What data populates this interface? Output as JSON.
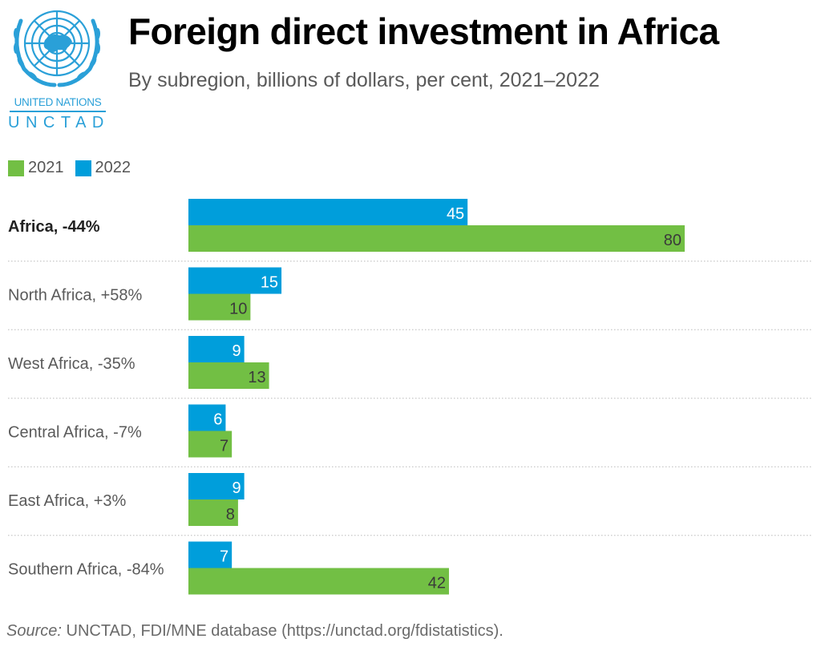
{
  "header": {
    "title": "Foreign direct investment in Africa",
    "subtitle": "By subregion, billions of dollars, per cent, 2021–2022"
  },
  "logo": {
    "line1": "UNITED NATIONS",
    "line2": "UNCTAD",
    "icon": "un-emblem-icon",
    "color": "#2aa0d8"
  },
  "colors": {
    "2021": "#72bf44",
    "2022": "#009edb",
    "label_dark": "#3a3a3a",
    "label_light": "#ffffff"
  },
  "footer": {
    "source_label": "Source:",
    "source_text": " UNCTAD, FDI/MNE database (https://unctad.org/fdistatistics)."
  },
  "chart_data": {
    "type": "bar",
    "orientation": "horizontal",
    "title": "Foreign direct investment in Africa",
    "subtitle": "By subregion, billions of dollars, per cent, 2021–2022",
    "xlabel": "",
    "ylabel": "",
    "xlim": [
      0,
      80
    ],
    "grid": false,
    "legend": {
      "placement": "top-left",
      "entries": [
        "2021",
        "2022"
      ]
    },
    "categories": [
      {
        "name": "Africa",
        "change": "-44%",
        "label": "Africa, -44%",
        "bold": true
      },
      {
        "name": "North Africa",
        "change": "+58%",
        "label": "North Africa, +58%",
        "bold": false
      },
      {
        "name": "West Africa",
        "change": "-35%",
        "label": "West Africa, -35%",
        "bold": false
      },
      {
        "name": "Central Africa",
        "change": "-7%",
        "label": "Central Africa, -7%",
        "bold": false
      },
      {
        "name": "East Africa",
        "change": "+3%",
        "label": "East Africa, +3%",
        "bold": false
      },
      {
        "name": "Southern Africa",
        "change": "-84%",
        "label": "Southern Africa, -84%",
        "bold": false
      }
    ],
    "series": [
      {
        "name": "2022",
        "color": "#009edb",
        "values": [
          45,
          15,
          9,
          6,
          9,
          7
        ]
      },
      {
        "name": "2021",
        "color": "#72bf44",
        "values": [
          80,
          10,
          13,
          7,
          8,
          42
        ]
      }
    ]
  }
}
